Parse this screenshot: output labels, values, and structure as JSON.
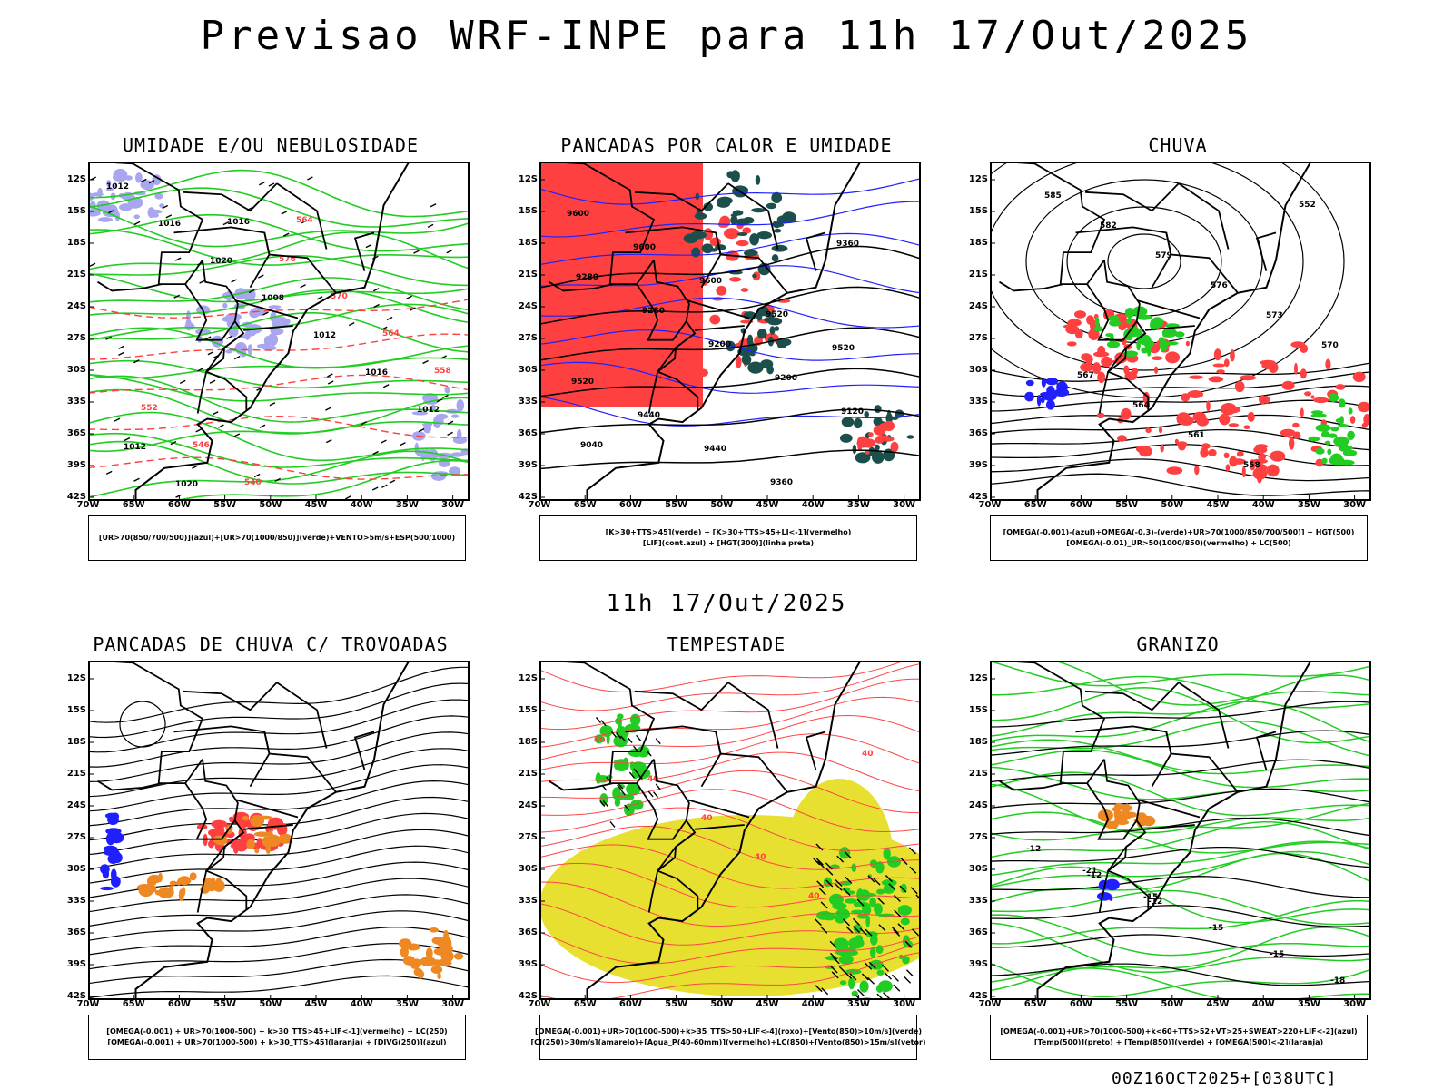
{
  "header": {
    "title": "Previsao WRF-INPE  para 11h 17/Out/2025",
    "middle_title": "11h 17/Out/2025",
    "run_label": "00Z16OCT2025+[038UTC]"
  },
  "axes": {
    "lat_labels": [
      "12S",
      "15S",
      "18S",
      "21S",
      "24S",
      "27S",
      "30S",
      "33S",
      "36S",
      "39S",
      "42S"
    ],
    "lon_labels": [
      "70W",
      "65W",
      "60W",
      "55W",
      "50W",
      "45W",
      "40W",
      "35W",
      "30W"
    ]
  },
  "colors": {
    "blue": "#2020ff",
    "light_purple": "#a9a6f0",
    "green": "#22cc22",
    "red": "#ff4040",
    "dark_teal": "#1c4f4b",
    "orange": "#ee8822",
    "yellow": "#e8e030",
    "purple": "#a000c0"
  },
  "panels": [
    {
      "title": "UMIDADE E/OU NEBULOSIDADE",
      "legend": [
        "[UR>70(850/700/500)](azul)+[UR>70(1000/850)](verde)+VENTO>5m/s+ESP(500/1000)"
      ],
      "contour_labels": [
        "1012",
        "1016",
        "1020",
        "1008",
        "1012",
        "1016",
        "1012",
        "1012",
        "1020",
        "1016",
        "576",
        "570",
        "564",
        "558",
        "552",
        "546",
        "540",
        "564"
      ]
    },
    {
      "title": "PANCADAS POR CALOR E UMIDADE",
      "legend": [
        "[K>30+TTS>45](verde) + [K>30+TTS>45+LI<-1](vermelho)",
        "[LIF](cont.azul) + [HGT(300)](linha preta)"
      ],
      "contour_labels": [
        "9600",
        "9600",
        "9600",
        "9520",
        "9520",
        "9520",
        "9440",
        "9440",
        "9360",
        "9360",
        "9280",
        "9280",
        "9200",
        "9200",
        "9120",
        "9040"
      ]
    },
    {
      "title": "CHUVA",
      "legend": [
        "[OMEGA(-0.001)-(azul)+OMEGA(-0.3)-(verde)+UR>70(1000/850/700/500)] + HGT(500)",
        "[OMEGA(-0.01)_UR>50(1000/850)(vermelho) + LC(500)"
      ],
      "contour_labels": [
        "585",
        "582",
        "579",
        "576",
        "573",
        "570",
        "567",
        "564",
        "561",
        "558",
        "552"
      ]
    },
    {
      "title": "PANCADAS DE CHUVA C/ TROVOADAS",
      "legend": [
        "[OMEGA(-0.001) + UR>70(1000-500) + k>30_TTS>45+LIF<-1](vermelho) + LC(250)",
        "[OMEGA(-0.001) + UR>70(1000-500) + k>30_TTS>45](laranja) + [DIVG(250)](azul)"
      ],
      "contour_labels": []
    },
    {
      "title": "TEMPESTADE",
      "legend": [
        "[OMEGA(-0.001)+UR>70(1000-500)+k>35_TTS>50+LIF<-4](roxo)+[Vento(850)>10m/s](verde)",
        "[CJ(250)>30m/s](amarelo)+[Agua_P(40-60mm)](vermelho)+LC(850)+[Vento(850)>15m/s](vetor)"
      ],
      "contour_labels": [
        "40",
        "40",
        "40",
        "40",
        "40",
        "40"
      ]
    },
    {
      "title": "GRANIZO",
      "legend": [
        "[OMEGA(-0.001)+UR>70(1000-500)+k<60+TTS>52+VT>25+SWEAT>220+LIF<-2](azul)",
        "[Temp(500)](preto) + [Temp(850)](verde) + [OMEGA(500)<-2](laranja)"
      ],
      "contour_labels": [
        "-12",
        "-12",
        "-12",
        "-15",
        "-15",
        "-18",
        "-21",
        "-15"
      ]
    }
  ]
}
